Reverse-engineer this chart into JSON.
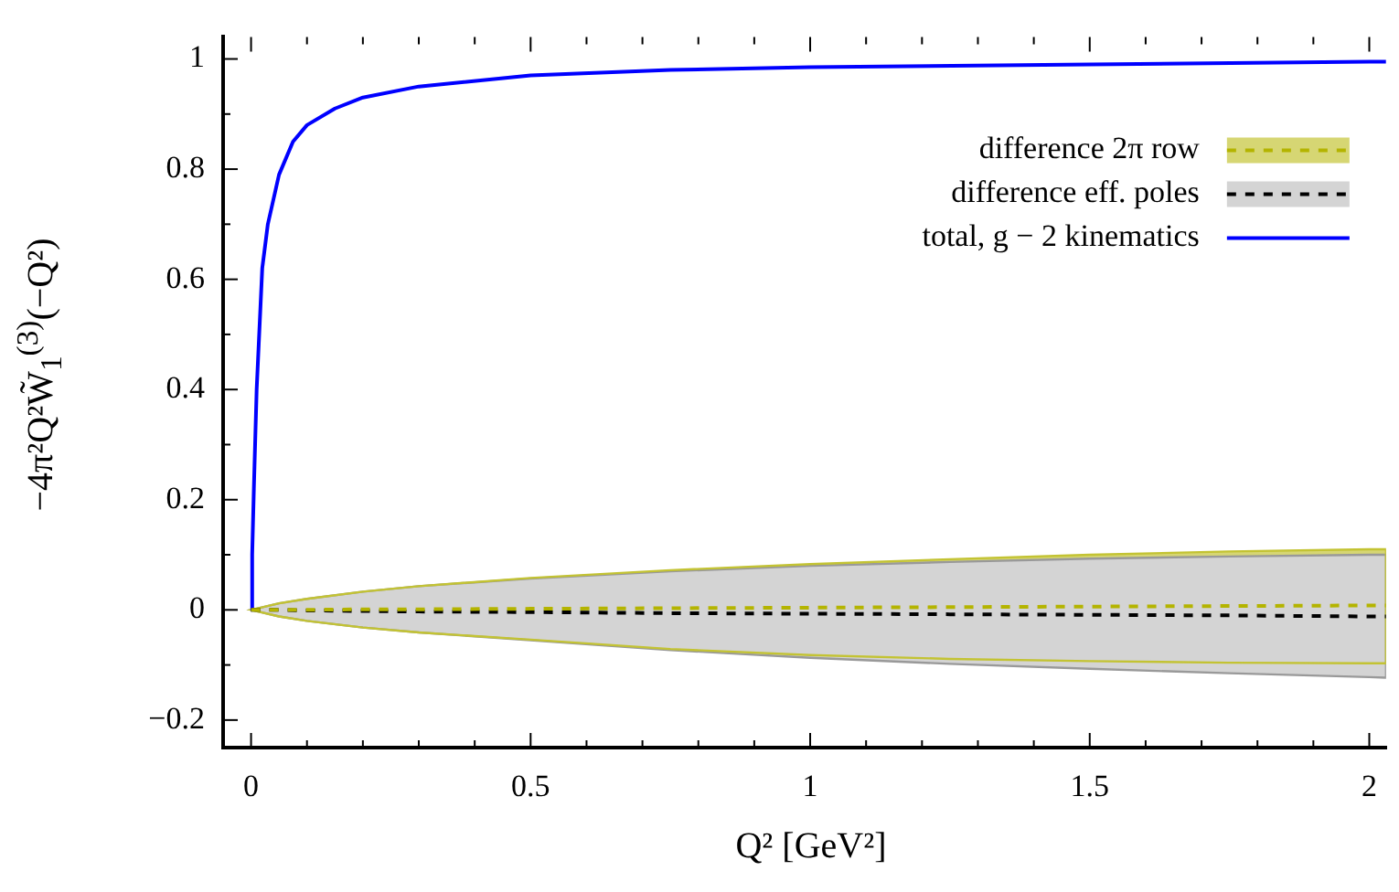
{
  "chart_data": {
    "type": "line",
    "xlabel": "Q² [GeV²]",
    "ylabel": "−4π²Q²W̃$_{1}$$^{(3)}$(−Q²)",
    "xlim": [
      -0.05,
      2.03
    ],
    "ylim": [
      -0.25,
      1.04
    ],
    "xticks": [
      0,
      {
        "value": 0.1,
        "label": null
      },
      {
        "value": 0.2,
        "label": null
      },
      {
        "value": 0.3,
        "label": null
      },
      {
        "value": 0.4,
        "label": null
      },
      0.5,
      {
        "value": 0.6,
        "label": null
      },
      {
        "value": 0.7,
        "label": null
      },
      {
        "value": 0.8,
        "label": null
      },
      {
        "value": 0.9,
        "label": null
      },
      1,
      {
        "value": 1.1,
        "label": null
      },
      {
        "value": 1.2,
        "label": null
      },
      {
        "value": 1.3,
        "label": null
      },
      {
        "value": 1.4,
        "label": null
      },
      1.5,
      {
        "value": 1.6,
        "label": null
      },
      {
        "value": 1.7,
        "label": null
      },
      {
        "value": 1.8,
        "label": null
      },
      {
        "value": 1.9,
        "label": null
      },
      2
    ],
    "yticks": [
      -0.2,
      {
        "value": -0.1,
        "label": null
      },
      0,
      {
        "value": 0.1,
        "label": null
      },
      0.2,
      {
        "value": 0.3,
        "label": null
      },
      0.4,
      {
        "value": 0.5,
        "label": null
      },
      0.6,
      {
        "value": 0.7,
        "label": null
      },
      0.8,
      {
        "value": 0.9,
        "label": null
      },
      1
    ],
    "grid": false,
    "legend": "top right",
    "x": [
      0,
      0.05,
      0.1,
      0.2,
      0.3,
      0.5,
      0.75,
      1,
      1.25,
      1.5,
      1.75,
      2,
      2.03
    ],
    "series": [
      {
        "name": "difference 2π row",
        "color": "#b4b400",
        "line_style": "dashed",
        "values": [
          0,
          0,
          0,
          0.001,
          0.001,
          0.002,
          0.003,
          0.004,
          0.005,
          0.006,
          0.007,
          0.008,
          0.008
        ],
        "lower": [
          0,
          -0.012,
          -0.02,
          -0.032,
          -0.041,
          -0.054,
          -0.071,
          -0.082,
          -0.089,
          -0.093,
          -0.096,
          -0.097,
          -0.097
        ],
        "upper": [
          0,
          0.012,
          0.02,
          0.033,
          0.043,
          0.058,
          0.072,
          0.083,
          0.092,
          0.1,
          0.106,
          0.11,
          0.11
        ]
      },
      {
        "name": "difference eff. poles",
        "color": "#000000",
        "line_style": "dashed",
        "values": [
          0,
          0,
          -0.001,
          -0.002,
          -0.003,
          -0.004,
          -0.006,
          -0.007,
          -0.008,
          -0.009,
          -0.01,
          -0.012,
          -0.012
        ],
        "lower": [
          0,
          -0.012,
          -0.02,
          -0.032,
          -0.041,
          -0.055,
          -0.073,
          -0.087,
          -0.098,
          -0.107,
          -0.115,
          -0.122,
          -0.123
        ],
        "upper": [
          0,
          0.012,
          0.02,
          0.033,
          0.043,
          0.057,
          0.07,
          0.08,
          0.087,
          0.093,
          0.097,
          0.1,
          0.1
        ]
      },
      {
        "name": "total, g − 2 kinematics",
        "color": "#0000ff",
        "line_style": "solid",
        "x": [
          0,
          0.002,
          0.005,
          0.01,
          0.02,
          0.03,
          0.05,
          0.075,
          0.1,
          0.15,
          0.2,
          0.3,
          0.5,
          0.75,
          1,
          1.5,
          2,
          2.03
        ],
        "values": [
          0,
          0.1,
          0.22,
          0.4,
          0.62,
          0.7,
          0.79,
          0.85,
          0.88,
          0.91,
          0.93,
          0.95,
          0.97,
          0.98,
          0.985,
          0.99,
          0.995,
          0.995
        ]
      }
    ]
  }
}
